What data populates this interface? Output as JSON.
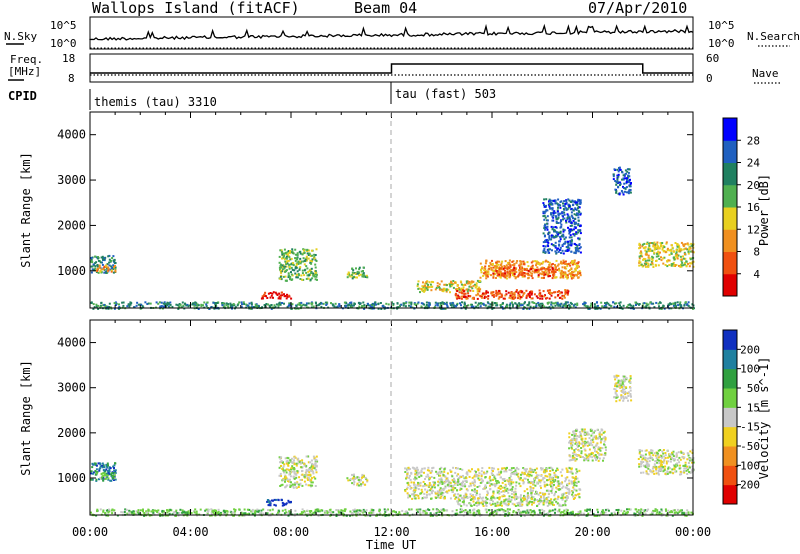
{
  "header": {
    "station": "Wallops Island (fitACF)",
    "beam": "Beam 04",
    "date": "07/Apr/2010"
  },
  "noise_panel": {
    "left_label": "N.Sky",
    "right_label": "N.Search",
    "ticks_left": [
      "10^5",
      "10^0"
    ],
    "ticks_right": [
      "10^5",
      "10^0"
    ]
  },
  "freq_panel": {
    "left_label_1": "Freq.",
    "left_label_2": "[MHz]",
    "right_label": "Nave",
    "ticks_left": [
      "18",
      "8"
    ],
    "ticks_right": [
      "60",
      "0"
    ]
  },
  "cpid_panel": {
    "label": "CPID",
    "modes": [
      {
        "name": "themis (tau) 3310",
        "start_hour": 0
      },
      {
        "name": "tau (fast) 503",
        "start_hour": 12
      }
    ]
  },
  "chart_data": [
    {
      "type": "heatmap",
      "quantity": "power",
      "ylabel": "Slant Range [km]",
      "xlabel": "Time UT",
      "x_ticks": [
        "00:00",
        "04:00",
        "08:00",
        "12:00",
        "16:00",
        "20:00",
        "00:00"
      ],
      "xlim_hours": [
        0,
        24
      ],
      "y_ticks": [
        "1000",
        "2000",
        "3000",
        "4000"
      ],
      "ylim_km": [
        180,
        4500
      ],
      "colorbar": {
        "label": "Power [dB]",
        "ticks": [
          "4",
          "8",
          "12",
          "16",
          "20",
          "24",
          "28"
        ],
        "colors": [
          "#0000ff",
          "#2060c0",
          "#208060",
          "#50b050",
          "#e8d020",
          "#f09020",
          "#f05010",
          "#e00000"
        ]
      },
      "regions": [
        {
          "t": [
            0.0,
            1.0
          ],
          "r": [
            950,
            1350
          ],
          "level": 2
        },
        {
          "t": [
            0.2,
            1.0
          ],
          "r": [
            1000,
            1150
          ],
          "level": 5
        },
        {
          "t": [
            6.8,
            8.0
          ],
          "r": [
            400,
            550
          ],
          "level": 7
        },
        {
          "t": [
            7.5,
            9.0
          ],
          "r": [
            800,
            1500
          ],
          "level": 3
        },
        {
          "t": [
            10.2,
            11.0
          ],
          "r": [
            850,
            1100
          ],
          "level": 3
        },
        {
          "t": [
            13.0,
            15.5
          ],
          "r": [
            550,
            800
          ],
          "level": 4
        },
        {
          "t": [
            14.5,
            19.0
          ],
          "r": [
            400,
            600
          ],
          "level": 6
        },
        {
          "t": [
            15.5,
            19.5
          ],
          "r": [
            850,
            1250
          ],
          "level": 5
        },
        {
          "t": [
            16.0,
            18.5
          ],
          "r": [
            900,
            1100
          ],
          "level": 6
        },
        {
          "t": [
            18.0,
            19.5
          ],
          "r": [
            1400,
            2600
          ],
          "level": 1
        },
        {
          "t": [
            20.8,
            21.5
          ],
          "r": [
            2700,
            3300
          ],
          "level": 1
        },
        {
          "t": [
            21.8,
            24.0
          ],
          "r": [
            1100,
            1650
          ],
          "level": 4
        },
        {
          "t": [
            0.0,
            24.0
          ],
          "r": [
            180,
            330
          ],
          "level": 2
        }
      ]
    },
    {
      "type": "heatmap",
      "quantity": "velocity",
      "ylabel": "Slant Range [km]",
      "xlabel": "Time UT",
      "x_ticks": [
        "00:00",
        "04:00",
        "08:00",
        "12:00",
        "16:00",
        "20:00",
        "00:00"
      ],
      "xlim_hours": [
        0,
        24
      ],
      "y_ticks": [
        "1000",
        "2000",
        "3000",
        "4000"
      ],
      "ylim_km": [
        180,
        4500
      ],
      "colorbar": {
        "label": "Velocity [m s^-1]",
        "ticks": [
          "200",
          "100",
          "50",
          "15",
          "-15",
          "-50",
          "-100",
          "-200"
        ],
        "colors": [
          "#1030c0",
          "#2080a0",
          "#30a040",
          "#70d040",
          "#c8c8c8",
          "#f0d020",
          "#f09020",
          "#f05010",
          "#e00000"
        ]
      },
      "regions": [
        {
          "t": [
            0.0,
            1.0
          ],
          "r": [
            950,
            1350
          ],
          "level": 1
        },
        {
          "t": [
            0.2,
            1.0
          ],
          "r": [
            1000,
            1150
          ],
          "level": 3
        },
        {
          "t": [
            7.0,
            8.0
          ],
          "r": [
            400,
            550
          ],
          "level": 0
        },
        {
          "t": [
            7.5,
            9.0
          ],
          "r": [
            800,
            1500
          ],
          "level": 4
        },
        {
          "t": [
            10.2,
            11.0
          ],
          "r": [
            850,
            1100
          ],
          "level": 4
        },
        {
          "t": [
            12.5,
            19.5
          ],
          "r": [
            550,
            1250
          ],
          "level": 4
        },
        {
          "t": [
            14.5,
            19.0
          ],
          "r": [
            400,
            600
          ],
          "level": 4
        },
        {
          "t": [
            19.0,
            20.5
          ],
          "r": [
            1400,
            2100
          ],
          "level": 4
        },
        {
          "t": [
            20.8,
            21.5
          ],
          "r": [
            2700,
            3300
          ],
          "level": 4
        },
        {
          "t": [
            21.8,
            24.0
          ],
          "r": [
            1100,
            1650
          ],
          "level": 4
        },
        {
          "t": [
            0.0,
            24.0
          ],
          "r": [
            180,
            330
          ],
          "level": 3
        }
      ]
    }
  ]
}
